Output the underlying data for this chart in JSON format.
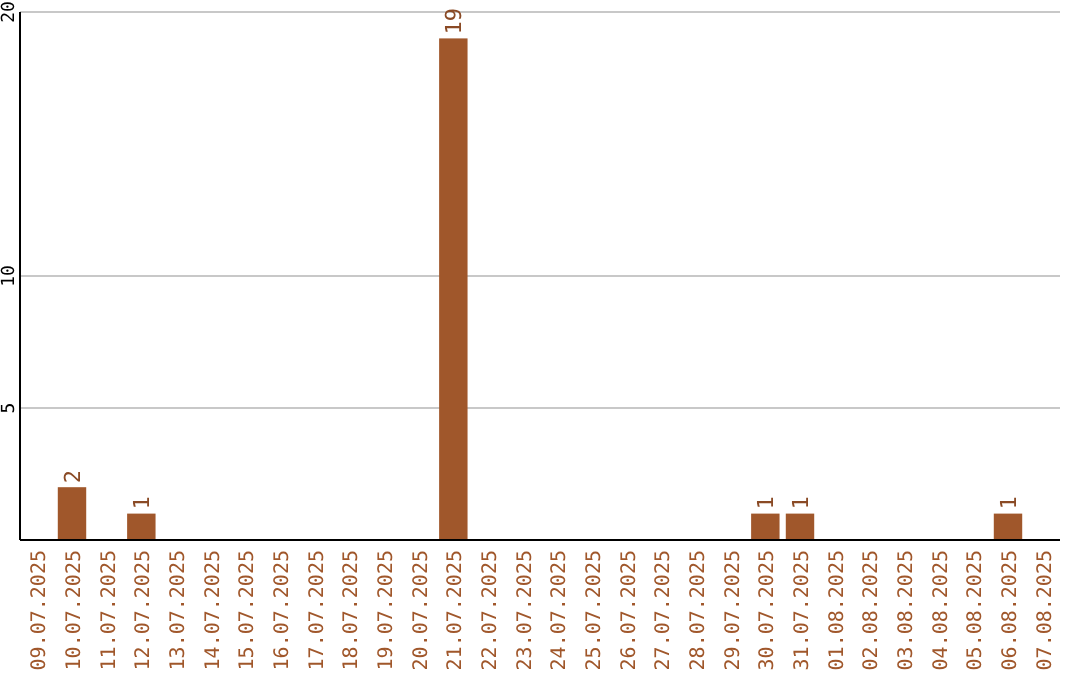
{
  "chart_data": {
    "type": "bar",
    "categories": [
      "09.07.2025",
      "10.07.2025",
      "11.07.2025",
      "12.07.2025",
      "13.07.2025",
      "14.07.2025",
      "15.07.2025",
      "16.07.2025",
      "17.07.2025",
      "18.07.2025",
      "19.07.2025",
      "20.07.2025",
      "21.07.2025",
      "22.07.2025",
      "23.07.2025",
      "24.07.2025",
      "25.07.2025",
      "26.07.2025",
      "27.07.2025",
      "28.07.2025",
      "29.07.2025",
      "30.07.2025",
      "31.07.2025",
      "01.08.2025",
      "02.08.2025",
      "03.08.2025",
      "04.08.2025",
      "05.08.2025",
      "06.08.2025",
      "07.08.2025"
    ],
    "values": [
      0,
      2,
      0,
      1,
      0,
      0,
      0,
      0,
      0,
      0,
      0,
      0,
      19,
      0,
      0,
      0,
      0,
      0,
      0,
      0,
      0,
      1,
      1,
      0,
      0,
      0,
      0,
      0,
      1,
      0
    ],
    "value_labels": [
      null,
      "2",
      null,
      "1",
      null,
      null,
      null,
      null,
      null,
      null,
      null,
      null,
      "19",
      null,
      null,
      null,
      null,
      null,
      null,
      null,
      null,
      "1",
      "1",
      null,
      null,
      null,
      null,
      null,
      "1",
      null
    ],
    "color": "#a0572b",
    "ylim": [
      0,
      20
    ],
    "yticks": [
      5,
      10,
      20
    ],
    "grid": "y"
  }
}
